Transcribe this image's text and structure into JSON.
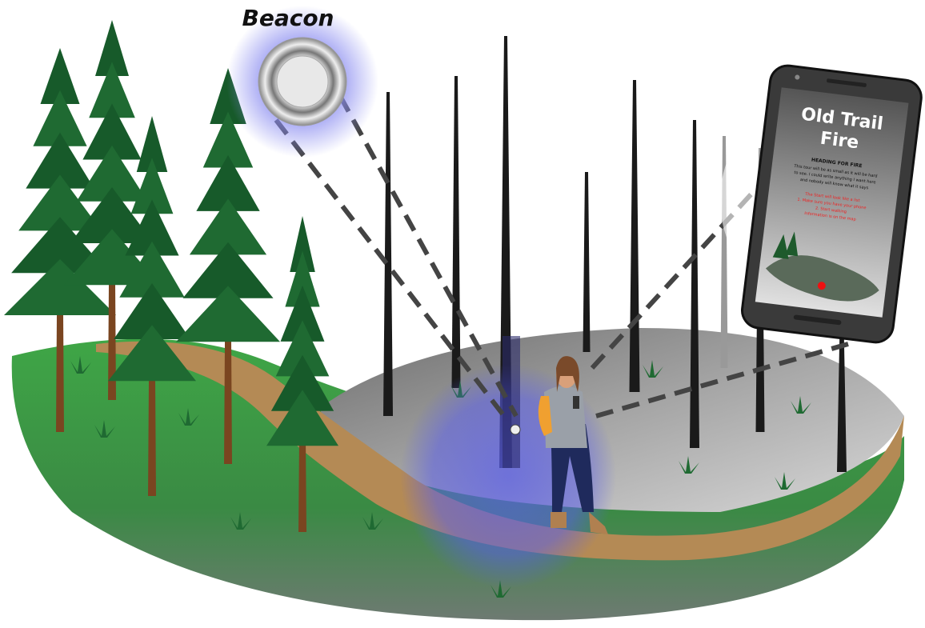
{
  "beacon_label": "Beacon",
  "phone": {
    "title_lines": [
      "Old Trail",
      "Fire"
    ],
    "heading": "HEADING FOR FIRE",
    "body_lines": [
      "This tour will be as small as it will be hard",
      "to see. I could write anything I want here",
      "and nobody will know what it says"
    ],
    "red_lines": [
      "The Start will look like a list",
      "1. Make sure you have your phone",
      "2. Start walking",
      "Information is on the map"
    ]
  }
}
